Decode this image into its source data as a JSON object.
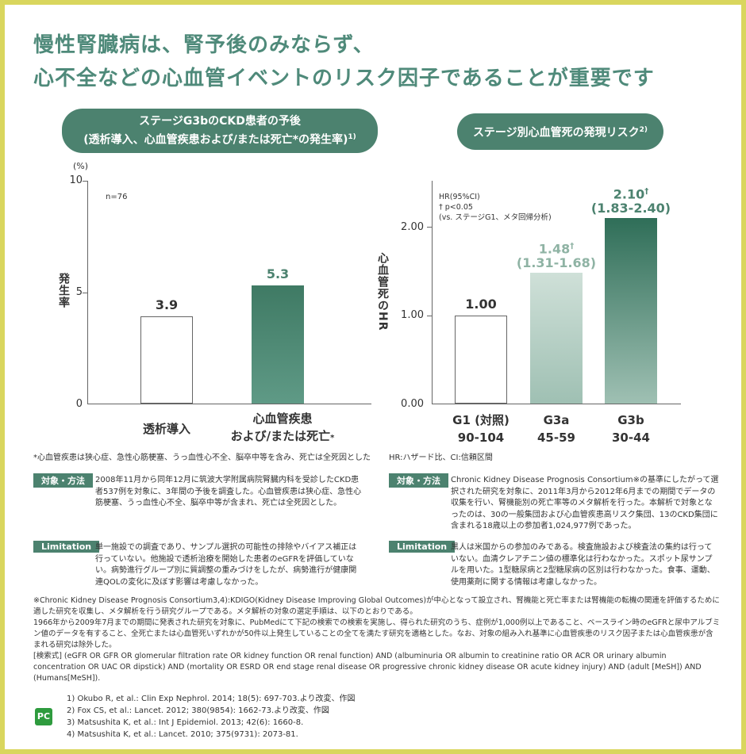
{
  "headline": {
    "line1": "慢性腎臓病は、腎予後のみならず、",
    "line2": "心不全などの心血管イベントのリスク因子であることが重要です"
  },
  "left_chart": {
    "pill_line1": "ステージG3bのCKD患者の予後",
    "pill_line2": "(透析導入、心血管疾患および/または死亡*の発生率)",
    "pill_sup": "1)",
    "unit": "(%)",
    "ylabel": "発生率",
    "n_label": "n=76",
    "ticks": [
      "10",
      "5",
      "0"
    ],
    "values": [
      "3.9",
      "5.3"
    ],
    "xlabel1": "透析導入",
    "xlabel2_line1": "心血管疾患",
    "xlabel2_line2": "および/または死亡",
    "xlabel2_mark": "*",
    "footnote": "*心血管疾患は狭心症、急性心筋梗塞、うっ血性心不全、脳卒中等を含み、死亡は全死因とした",
    "colors": {
      "bar1": "#ffffff",
      "bar2": "#4c826f"
    }
  },
  "right_chart": {
    "pill": "ステージ別心血管死の発現リスク",
    "pill_sup": "2)",
    "ylabel": "心血管死のHR",
    "legend1": "HR(95%CI)",
    "legend2": "† p<0.05",
    "legend3": "(vs. ステージG1、メタ回帰分析)",
    "ticks": [
      "2.00",
      "1.00",
      "0.00"
    ],
    "v1": "1.00",
    "v2": "1.48",
    "v2_ci": "(1.31-1.68)",
    "v3": "2.10",
    "v3_ci": "(1.83-2.40)",
    "dagger": "†",
    "x1a": "G1 (対照)",
    "x1b": "90-104",
    "x2a": "G3a",
    "x2b": "45-59",
    "x3a": "G3b",
    "x3b": "30-44",
    "footnote": "HR:ハザード比、CI:信頼区間",
    "colors": {
      "v2": "#8fb3a4",
      "v3": "#4c826f"
    }
  },
  "chart_data": [
    {
      "type": "bar",
      "categories": [
        "透析導入",
        "心血管疾患および/または死亡*"
      ],
      "values": [
        3.9,
        5.3
      ],
      "ylabel": "発生率",
      "ylim": [
        0,
        10
      ]
    },
    {
      "type": "bar",
      "categories": [
        "G1 (対照) 90-104",
        "G3a 45-59",
        "G3b 30-44"
      ],
      "values": [
        1.0,
        1.48,
        2.1
      ],
      "ci": [
        null,
        [
          1.31,
          1.68
        ],
        [
          1.83,
          2.4
        ]
      ],
      "ylabel": "心血管死のHR",
      "ylim": [
        0,
        2.5
      ]
    }
  ],
  "methods_left": {
    "tag": "対象・方法",
    "text": "2008年11月から同年12月に筑波大学附属病院腎臓内科を受診したCKD患者537例を対象に、3年間の予後を調査した。心血管疾患は狭心症、急性心筋梗塞、うっ血性心不全、脳卒中等が含まれ、死亡は全死因とした。"
  },
  "limitation_left": {
    "tag": "Limitation",
    "text": "単一施設での調査であり、サンプル選択の可能性の排除やバイアス補正は行っていない。他施設で透析治療を開始した患者のeGFRを評価していない。病勢進行グループ別に質調整の重みづけをしたが、病勢進行が健康関連QOLの変化に及ぼす影響は考慮しなかった。"
  },
  "methods_right": {
    "tag": "対象・方法",
    "text": "Chronic Kidney Disease Prognosis Consortium※の基準にしたがって選択された研究を対象に、2011年3月から2012年6月までの期間でデータの収集を行い、腎機能別の死亡率等のメタ解析を行った。本解析で対象となったのは、30の一般集団および心血管疾患高リスク集団、13のCKD集団に含まれる18歳以上の参加者1,024,977例であった。"
  },
  "limitation_right": {
    "tag": "Limitation",
    "text": "黒人は米国からの参加のみである。検査施設および検査法の集約は行っていない。血清クレアチニン値の標準化は行わなかった。スポット尿サンプルを用いた。1型糖尿病と2型糖尿病の区別は行わなかった。食事、運動、使用薬剤に関する情報は考慮しなかった。"
  },
  "note": {
    "p1": "※Chronic Kidney Disease Prognosis Consortium3,4):KDIGO(Kidney Disease Improving Global Outcomes)が中心となって設立され、腎機能と死亡率または腎機能の転機の関連を評価するために適した研究を収集し、メタ解析を行う研究グループである。メタ解析の対象の選定手順は、以下のとおりである。",
    "p2": "1966年から2009年7月までの期間に発表された研究を対象に、PubMedにて下記の検索での検索を実施し、得られた研究のうち、症例が1,000例以上であること、ベースライン時のeGFRと尿中アルブミン値のデータを有すること、全死亡または心血管死いずれかが50件以上発生していることの全てを満たす研究を適格とした。なお、対象の組み入れ基準に心血管疾患のリスク因子または心血管疾患が含まれる研究は除外した。",
    "p3": "[検索式] (eGFR OR GFR OR glomerular filtration rate OR kidney function OR renal function) AND (albuminuria OR albumin to creatinine ratio OR ACR OR urinary albumin concentration OR UAC OR dipstick) AND (mortality OR ESRD OR end stage renal disease OR progressive chronic kidney disease OR acute kidney injury) AND (adult [MeSH]) AND (Humans[MeSH])."
  },
  "logo_text": "PC",
  "refs": [
    "1) Okubo R, et al.: Clin Exp Nephrol. 2014; 18(5): 697-703.より改変、作図",
    "2) Fox CS, et al.: Lancet. 2012; 380(9854): 1662-73.より改変、作図",
    "3) Matsushita K, et al.: Int J Epidemiol. 2013; 42(6): 1660-8.",
    "4) Matsushita K, et al.: Lancet. 2010; 375(9731): 2073-81."
  ]
}
